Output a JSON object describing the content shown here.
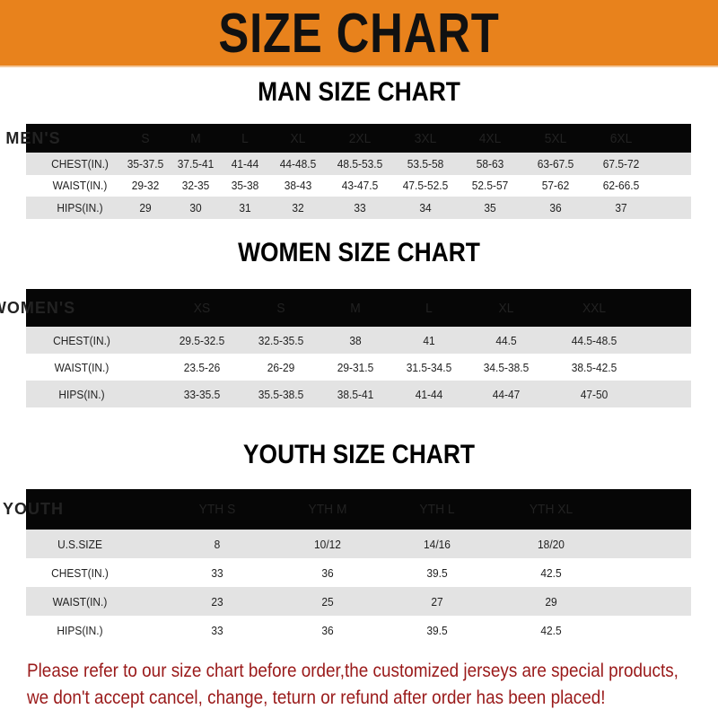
{
  "banner": {
    "title": "SIZE CHART",
    "background_color": "#e8821c"
  },
  "men": {
    "title": "MAN SIZE CHART",
    "header": [
      "MEN'S",
      "S",
      "M",
      "L",
      "XL",
      "2XL",
      "3XL",
      "4XL",
      "5XL",
      "6XL"
    ],
    "rows": [
      [
        "CHEST(IN.)",
        "35-37.5",
        "37.5-41",
        "41-44",
        "44-48.5",
        "48.5-53.5",
        "53.5-58",
        "58-63",
        "63-67.5",
        "67.5-72"
      ],
      [
        "WAIST(IN.)",
        "29-32",
        "32-35",
        "35-38",
        "38-43",
        "43-47.5",
        "47.5-52.5",
        "52.5-57",
        "57-62",
        "62-66.5"
      ],
      [
        "HIPS(IN.)",
        "29",
        "30",
        "31",
        "32",
        "33",
        "34",
        "35",
        "36",
        "37"
      ]
    ]
  },
  "women": {
    "title": "WOMEN SIZE CHART",
    "header": [
      "WOMEN'S",
      "XS",
      "S",
      "M",
      "L",
      "XL",
      "XXL"
    ],
    "rows": [
      [
        "CHEST(IN.)",
        "29.5-32.5",
        "32.5-35.5",
        "38",
        "41",
        "44.5",
        "44.5-48.5"
      ],
      [
        "WAIST(IN.)",
        "23.5-26",
        "26-29",
        "29-31.5",
        "31.5-34.5",
        "34.5-38.5",
        "38.5-42.5"
      ],
      [
        "HIPS(IN.)",
        "33-35.5",
        "35.5-38.5",
        "38.5-41",
        "41-44",
        "44-47",
        "47-50"
      ]
    ]
  },
  "youth": {
    "title": "YOUTH SIZE CHART",
    "header": [
      "YOUTH",
      "YTH S",
      "YTH M",
      "YTH L",
      "YTH XL"
    ],
    "rows": [
      [
        "U.S.SIZE",
        "8",
        "10/12",
        "14/16",
        "18/20"
      ],
      [
        "CHEST(IN.)",
        "33",
        "36",
        "39.5",
        "42.5"
      ],
      [
        "WAIST(IN.)",
        "23",
        "25",
        "27",
        "29"
      ],
      [
        "HIPS(IN.)",
        "33",
        "36",
        "39.5",
        "42.5"
      ]
    ]
  },
  "footer": {
    "line1": "Please refer to our size chart before order,the customized jerseys are special products,",
    "line2": "we don't accept cancel, change, teturn or refund after order has been placed!",
    "color": "#9a1a1a"
  }
}
